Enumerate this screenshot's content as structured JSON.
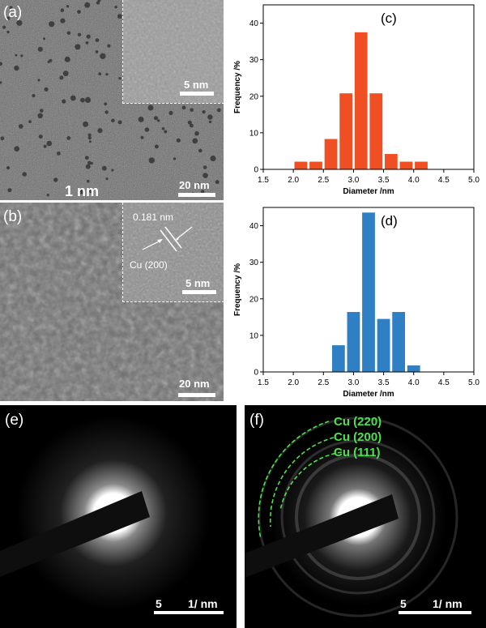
{
  "panel_a": {
    "label": "(a)",
    "scale_text": "20 nm",
    "overlay_text": "1 nm",
    "inset_scale_text": "5 nm"
  },
  "panel_b": {
    "label": "(b)",
    "scale_text": "20 nm",
    "inset_scale_text": "5 nm",
    "lattice_text": "0.181 nm",
    "plane_text": "Cu (200)"
  },
  "panel_e": {
    "label": "(e)",
    "scale_value": "5",
    "scale_unit": "1/ nm"
  },
  "panel_f": {
    "label": "(f)",
    "scale_value": "5",
    "scale_unit": "1/ nm",
    "rings": [
      "Cu (220)",
      "Cu (200)",
      "Cu (111)"
    ],
    "ring_color": "#4ee04e"
  },
  "chart_data": [
    {
      "type": "bar",
      "panel_label": "(c)",
      "xlabel": "Diameter /nm",
      "ylabel": "Frequency /%",
      "xlim": [
        1.5,
        5.0
      ],
      "ylim": [
        0,
        45
      ],
      "xticks": [
        "1.5",
        "2.0",
        "2.5",
        "3.0",
        "3.5",
        "4.0",
        "4.5",
        "5.0"
      ],
      "yticks": [
        "0",
        "10",
        "20",
        "30",
        "40"
      ],
      "color": "#f04e23",
      "x": [
        2.125,
        2.375,
        2.625,
        2.875,
        3.125,
        3.375,
        3.625,
        3.875,
        4.125,
        4.375
      ],
      "values": [
        2.1,
        2.1,
        8.3,
        20.8,
        37.5,
        20.8,
        4.2,
        2.1,
        2.1,
        0
      ],
      "grid": false
    },
    {
      "type": "bar",
      "panel_label": "(d)",
      "xlabel": "Diameter /nm",
      "ylabel": "Frequency /%",
      "xlim": [
        1.5,
        5.0
      ],
      "ylim": [
        0,
        45
      ],
      "xticks": [
        "1.5",
        "2.0",
        "2.5",
        "3.0",
        "3.5",
        "4.0",
        "4.5",
        "5.0"
      ],
      "yticks": [
        "0",
        "10",
        "20",
        "30",
        "40"
      ],
      "color": "#2f7fc4",
      "x": [
        2.75,
        3.0,
        3.25,
        3.5,
        3.75,
        4.0
      ],
      "values": [
        7.3,
        16.4,
        43.6,
        14.5,
        16.4,
        1.8
      ],
      "grid": false
    }
  ]
}
